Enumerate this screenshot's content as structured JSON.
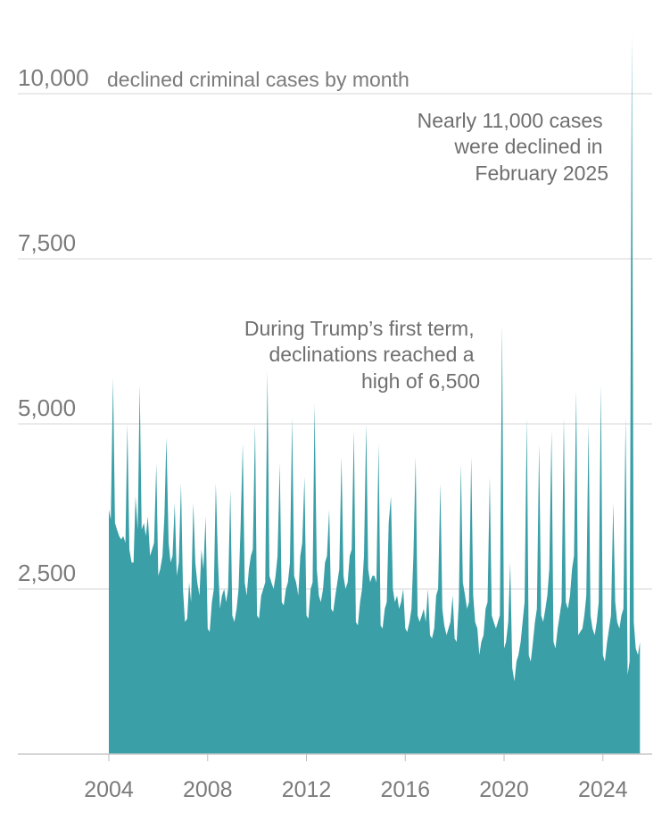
{
  "chart_data": {
    "type": "area",
    "title": "declined criminal cases by month",
    "xlabel": "",
    "ylabel": "",
    "ylim": [
      0,
      10000
    ],
    "xlim": [
      2004.0,
      2025.2
    ],
    "grid": true,
    "color": "#3a9fa6",
    "y_ticks": [
      {
        "value": 10000,
        "label": "10,000"
      },
      {
        "value": 7500,
        "label": "7,500"
      },
      {
        "value": 5000,
        "label": "5,000"
      },
      {
        "value": 2500,
        "label": "2,500"
      }
    ],
    "x_ticks": [
      {
        "value": 2004,
        "label": "2004"
      },
      {
        "value": 2008,
        "label": "2008"
      },
      {
        "value": 2012,
        "label": "2012"
      },
      {
        "value": 2016,
        "label": "2016"
      },
      {
        "value": 2020,
        "label": "2020"
      },
      {
        "value": 2024,
        "label": "2024"
      }
    ],
    "series": [
      {
        "values": [
          [
            2004.0,
            3700
          ],
          [
            2004.08,
            3550
          ],
          [
            2004.17,
            5700
          ],
          [
            2004.25,
            3500
          ],
          [
            2004.33,
            3400
          ],
          [
            2004.42,
            3300
          ],
          [
            2004.5,
            3250
          ],
          [
            2004.58,
            3300
          ],
          [
            2004.67,
            3200
          ],
          [
            2004.75,
            5000
          ],
          [
            2004.83,
            3100
          ],
          [
            2004.92,
            2900
          ],
          [
            2005.0,
            2900
          ],
          [
            2005.08,
            3900
          ],
          [
            2005.17,
            3400
          ],
          [
            2005.25,
            5600
          ],
          [
            2005.33,
            3400
          ],
          [
            2005.42,
            3500
          ],
          [
            2005.5,
            3300
          ],
          [
            2005.58,
            3600
          ],
          [
            2005.67,
            3000
          ],
          [
            2005.75,
            3100
          ],
          [
            2005.83,
            3200
          ],
          [
            2005.92,
            4400
          ],
          [
            2006.0,
            2700
          ],
          [
            2006.08,
            2800
          ],
          [
            2006.17,
            3000
          ],
          [
            2006.25,
            3600
          ],
          [
            2006.33,
            4800
          ],
          [
            2006.42,
            3200
          ],
          [
            2006.5,
            2900
          ],
          [
            2006.58,
            3000
          ],
          [
            2006.67,
            3800
          ],
          [
            2006.75,
            2700
          ],
          [
            2006.83,
            2900
          ],
          [
            2006.92,
            4100
          ],
          [
            2007.0,
            2500
          ],
          [
            2007.08,
            2000
          ],
          [
            2007.17,
            2050
          ],
          [
            2007.25,
            2600
          ],
          [
            2007.33,
            2300
          ],
          [
            2007.42,
            3800
          ],
          [
            2007.5,
            2900
          ],
          [
            2007.58,
            2600
          ],
          [
            2007.67,
            2400
          ],
          [
            2007.75,
            3100
          ],
          [
            2007.83,
            2800
          ],
          [
            2007.92,
            3600
          ],
          [
            2008.0,
            1900
          ],
          [
            2008.08,
            1850
          ],
          [
            2008.17,
            2300
          ],
          [
            2008.25,
            2500
          ],
          [
            2008.33,
            4100
          ],
          [
            2008.42,
            2900
          ],
          [
            2008.5,
            2200
          ],
          [
            2008.58,
            2400
          ],
          [
            2008.67,
            2500
          ],
          [
            2008.75,
            2300
          ],
          [
            2008.83,
            2500
          ],
          [
            2008.92,
            4000
          ],
          [
            2009.0,
            2100
          ],
          [
            2009.08,
            2000
          ],
          [
            2009.17,
            2200
          ],
          [
            2009.25,
            2500
          ],
          [
            2009.33,
            3400
          ],
          [
            2009.42,
            4700
          ],
          [
            2009.5,
            2600
          ],
          [
            2009.58,
            2400
          ],
          [
            2009.67,
            2800
          ],
          [
            2009.75,
            3000
          ],
          [
            2009.83,
            3100
          ],
          [
            2009.92,
            5000
          ],
          [
            2010.0,
            2100
          ],
          [
            2010.08,
            2050
          ],
          [
            2010.17,
            2400
          ],
          [
            2010.25,
            2500
          ],
          [
            2010.33,
            2600
          ],
          [
            2010.42,
            5800
          ],
          [
            2010.5,
            2700
          ],
          [
            2010.58,
            2600
          ],
          [
            2010.67,
            2500
          ],
          [
            2010.75,
            2700
          ],
          [
            2010.83,
            3000
          ],
          [
            2010.92,
            4400
          ],
          [
            2011.0,
            2300
          ],
          [
            2011.08,
            2250
          ],
          [
            2011.17,
            2500
          ],
          [
            2011.25,
            2600
          ],
          [
            2011.33,
            2900
          ],
          [
            2011.42,
            5100
          ],
          [
            2011.5,
            2700
          ],
          [
            2011.58,
            2600
          ],
          [
            2011.67,
            2400
          ],
          [
            2011.75,
            3000
          ],
          [
            2011.83,
            3200
          ],
          [
            2011.92,
            4200
          ],
          [
            2012.0,
            2100
          ],
          [
            2012.08,
            2050
          ],
          [
            2012.17,
            2500
          ],
          [
            2012.25,
            2600
          ],
          [
            2012.33,
            5300
          ],
          [
            2012.42,
            2800
          ],
          [
            2012.5,
            2400
          ],
          [
            2012.58,
            2300
          ],
          [
            2012.67,
            2500
          ],
          [
            2012.75,
            2900
          ],
          [
            2012.83,
            3000
          ],
          [
            2012.92,
            3700
          ],
          [
            2013.0,
            2200
          ],
          [
            2013.08,
            2150
          ],
          [
            2013.17,
            2400
          ],
          [
            2013.25,
            2600
          ],
          [
            2013.33,
            2800
          ],
          [
            2013.42,
            4500
          ],
          [
            2013.5,
            2700
          ],
          [
            2013.58,
            2500
          ],
          [
            2013.67,
            2600
          ],
          [
            2013.75,
            3000
          ],
          [
            2013.83,
            3100
          ],
          [
            2013.92,
            4900
          ],
          [
            2014.0,
            2000
          ],
          [
            2014.08,
            1950
          ],
          [
            2014.17,
            2300
          ],
          [
            2014.25,
            2500
          ],
          [
            2014.33,
            3000
          ],
          [
            2014.42,
            5000
          ],
          [
            2014.5,
            2800
          ],
          [
            2014.58,
            2600
          ],
          [
            2014.67,
            2700
          ],
          [
            2014.75,
            2700
          ],
          [
            2014.83,
            2600
          ],
          [
            2014.92,
            4700
          ],
          [
            2015.0,
            1950
          ],
          [
            2015.08,
            1900
          ],
          [
            2015.17,
            2200
          ],
          [
            2015.25,
            2300
          ],
          [
            2015.33,
            3500
          ],
          [
            2015.42,
            3900
          ],
          [
            2015.5,
            2500
          ],
          [
            2015.58,
            2300
          ],
          [
            2015.67,
            2400
          ],
          [
            2015.75,
            2200
          ],
          [
            2015.83,
            2300
          ],
          [
            2015.92,
            2500
          ],
          [
            2016.0,
            1900
          ],
          [
            2016.08,
            1850
          ],
          [
            2016.17,
            2000
          ],
          [
            2016.25,
            2200
          ],
          [
            2016.33,
            3000
          ],
          [
            2016.42,
            4500
          ],
          [
            2016.5,
            2100
          ],
          [
            2016.58,
            2000
          ],
          [
            2016.67,
            2100
          ],
          [
            2016.75,
            2200
          ],
          [
            2016.83,
            2000
          ],
          [
            2016.92,
            2500
          ],
          [
            2017.0,
            1800
          ],
          [
            2017.08,
            1750
          ],
          [
            2017.17,
            1900
          ],
          [
            2017.25,
            2400
          ],
          [
            2017.33,
            2500
          ],
          [
            2017.42,
            4100
          ],
          [
            2017.5,
            2200
          ],
          [
            2017.58,
            1950
          ],
          [
            2017.67,
            1800
          ],
          [
            2017.75,
            1900
          ],
          [
            2017.83,
            2000
          ],
          [
            2017.92,
            2400
          ],
          [
            2018.0,
            1750
          ],
          [
            2018.08,
            1700
          ],
          [
            2018.17,
            2300
          ],
          [
            2018.25,
            4400
          ],
          [
            2018.33,
            2600
          ],
          [
            2018.42,
            2400
          ],
          [
            2018.5,
            2200
          ],
          [
            2018.58,
            2300
          ],
          [
            2018.67,
            4500
          ],
          [
            2018.75,
            2400
          ],
          [
            2018.83,
            2000
          ],
          [
            2018.92,
            1900
          ],
          [
            2019.0,
            1500
          ],
          [
            2019.08,
            1700
          ],
          [
            2019.17,
            1800
          ],
          [
            2019.25,
            2200
          ],
          [
            2019.33,
            2300
          ],
          [
            2019.42,
            4200
          ],
          [
            2019.5,
            2100
          ],
          [
            2019.58,
            2000
          ],
          [
            2019.67,
            1900
          ],
          [
            2019.75,
            2000
          ],
          [
            2019.83,
            2100
          ],
          [
            2019.92,
            6500
          ],
          [
            2020.0,
            1600
          ],
          [
            2020.08,
            1700
          ],
          [
            2020.17,
            2000
          ],
          [
            2020.25,
            2900
          ],
          [
            2020.33,
            1300
          ],
          [
            2020.42,
            1100
          ],
          [
            2020.5,
            1400
          ],
          [
            2020.58,
            1500
          ],
          [
            2020.67,
            1700
          ],
          [
            2020.75,
            2000
          ],
          [
            2020.83,
            2300
          ],
          [
            2020.92,
            5100
          ],
          [
            2021.0,
            1500
          ],
          [
            2021.08,
            1400
          ],
          [
            2021.17,
            1700
          ],
          [
            2021.25,
            2000
          ],
          [
            2021.33,
            2200
          ],
          [
            2021.42,
            4700
          ],
          [
            2021.5,
            2100
          ],
          [
            2021.58,
            2000
          ],
          [
            2021.67,
            2200
          ],
          [
            2021.75,
            2400
          ],
          [
            2021.83,
            2800
          ],
          [
            2021.92,
            4900
          ],
          [
            2022.0,
            1700
          ],
          [
            2022.08,
            1600
          ],
          [
            2022.17,
            1900
          ],
          [
            2022.25,
            2100
          ],
          [
            2022.33,
            2300
          ],
          [
            2022.42,
            5100
          ],
          [
            2022.5,
            2300
          ],
          [
            2022.58,
            2200
          ],
          [
            2022.67,
            2400
          ],
          [
            2022.75,
            2800
          ],
          [
            2022.83,
            3000
          ],
          [
            2022.92,
            5500
          ],
          [
            2023.0,
            1800
          ],
          [
            2023.08,
            1850
          ],
          [
            2023.17,
            1900
          ],
          [
            2023.25,
            2100
          ],
          [
            2023.33,
            2400
          ],
          [
            2023.42,
            5000
          ],
          [
            2023.5,
            2100
          ],
          [
            2023.58,
            1900
          ],
          [
            2023.67,
            1800
          ],
          [
            2023.75,
            2000
          ],
          [
            2023.83,
            2300
          ],
          [
            2023.92,
            5600
          ],
          [
            2024.0,
            1500
          ],
          [
            2024.08,
            1400
          ],
          [
            2024.17,
            1700
          ],
          [
            2024.25,
            1900
          ],
          [
            2024.33,
            2100
          ],
          [
            2024.42,
            3800
          ],
          [
            2024.5,
            2300
          ],
          [
            2024.58,
            2000
          ],
          [
            2024.67,
            1900
          ],
          [
            2024.75,
            2100
          ],
          [
            2024.83,
            2200
          ],
          [
            2024.92,
            5100
          ],
          [
            2025.0,
            1200
          ],
          [
            2025.08,
            1400
          ],
          [
            2025.17,
            10900
          ],
          [
            2025.25,
            2000
          ],
          [
            2025.33,
            1600
          ],
          [
            2025.42,
            1500
          ],
          [
            2025.5,
            1700
          ]
        ]
      }
    ],
    "annotations": [
      {
        "lines": [
          "Nearly 11,000 cases",
          "were declined in",
          "February 2025"
        ]
      },
      {
        "lines": [
          "During Trump’s first term,",
          "declinations reached a",
          "high of 6,500"
        ]
      }
    ]
  }
}
